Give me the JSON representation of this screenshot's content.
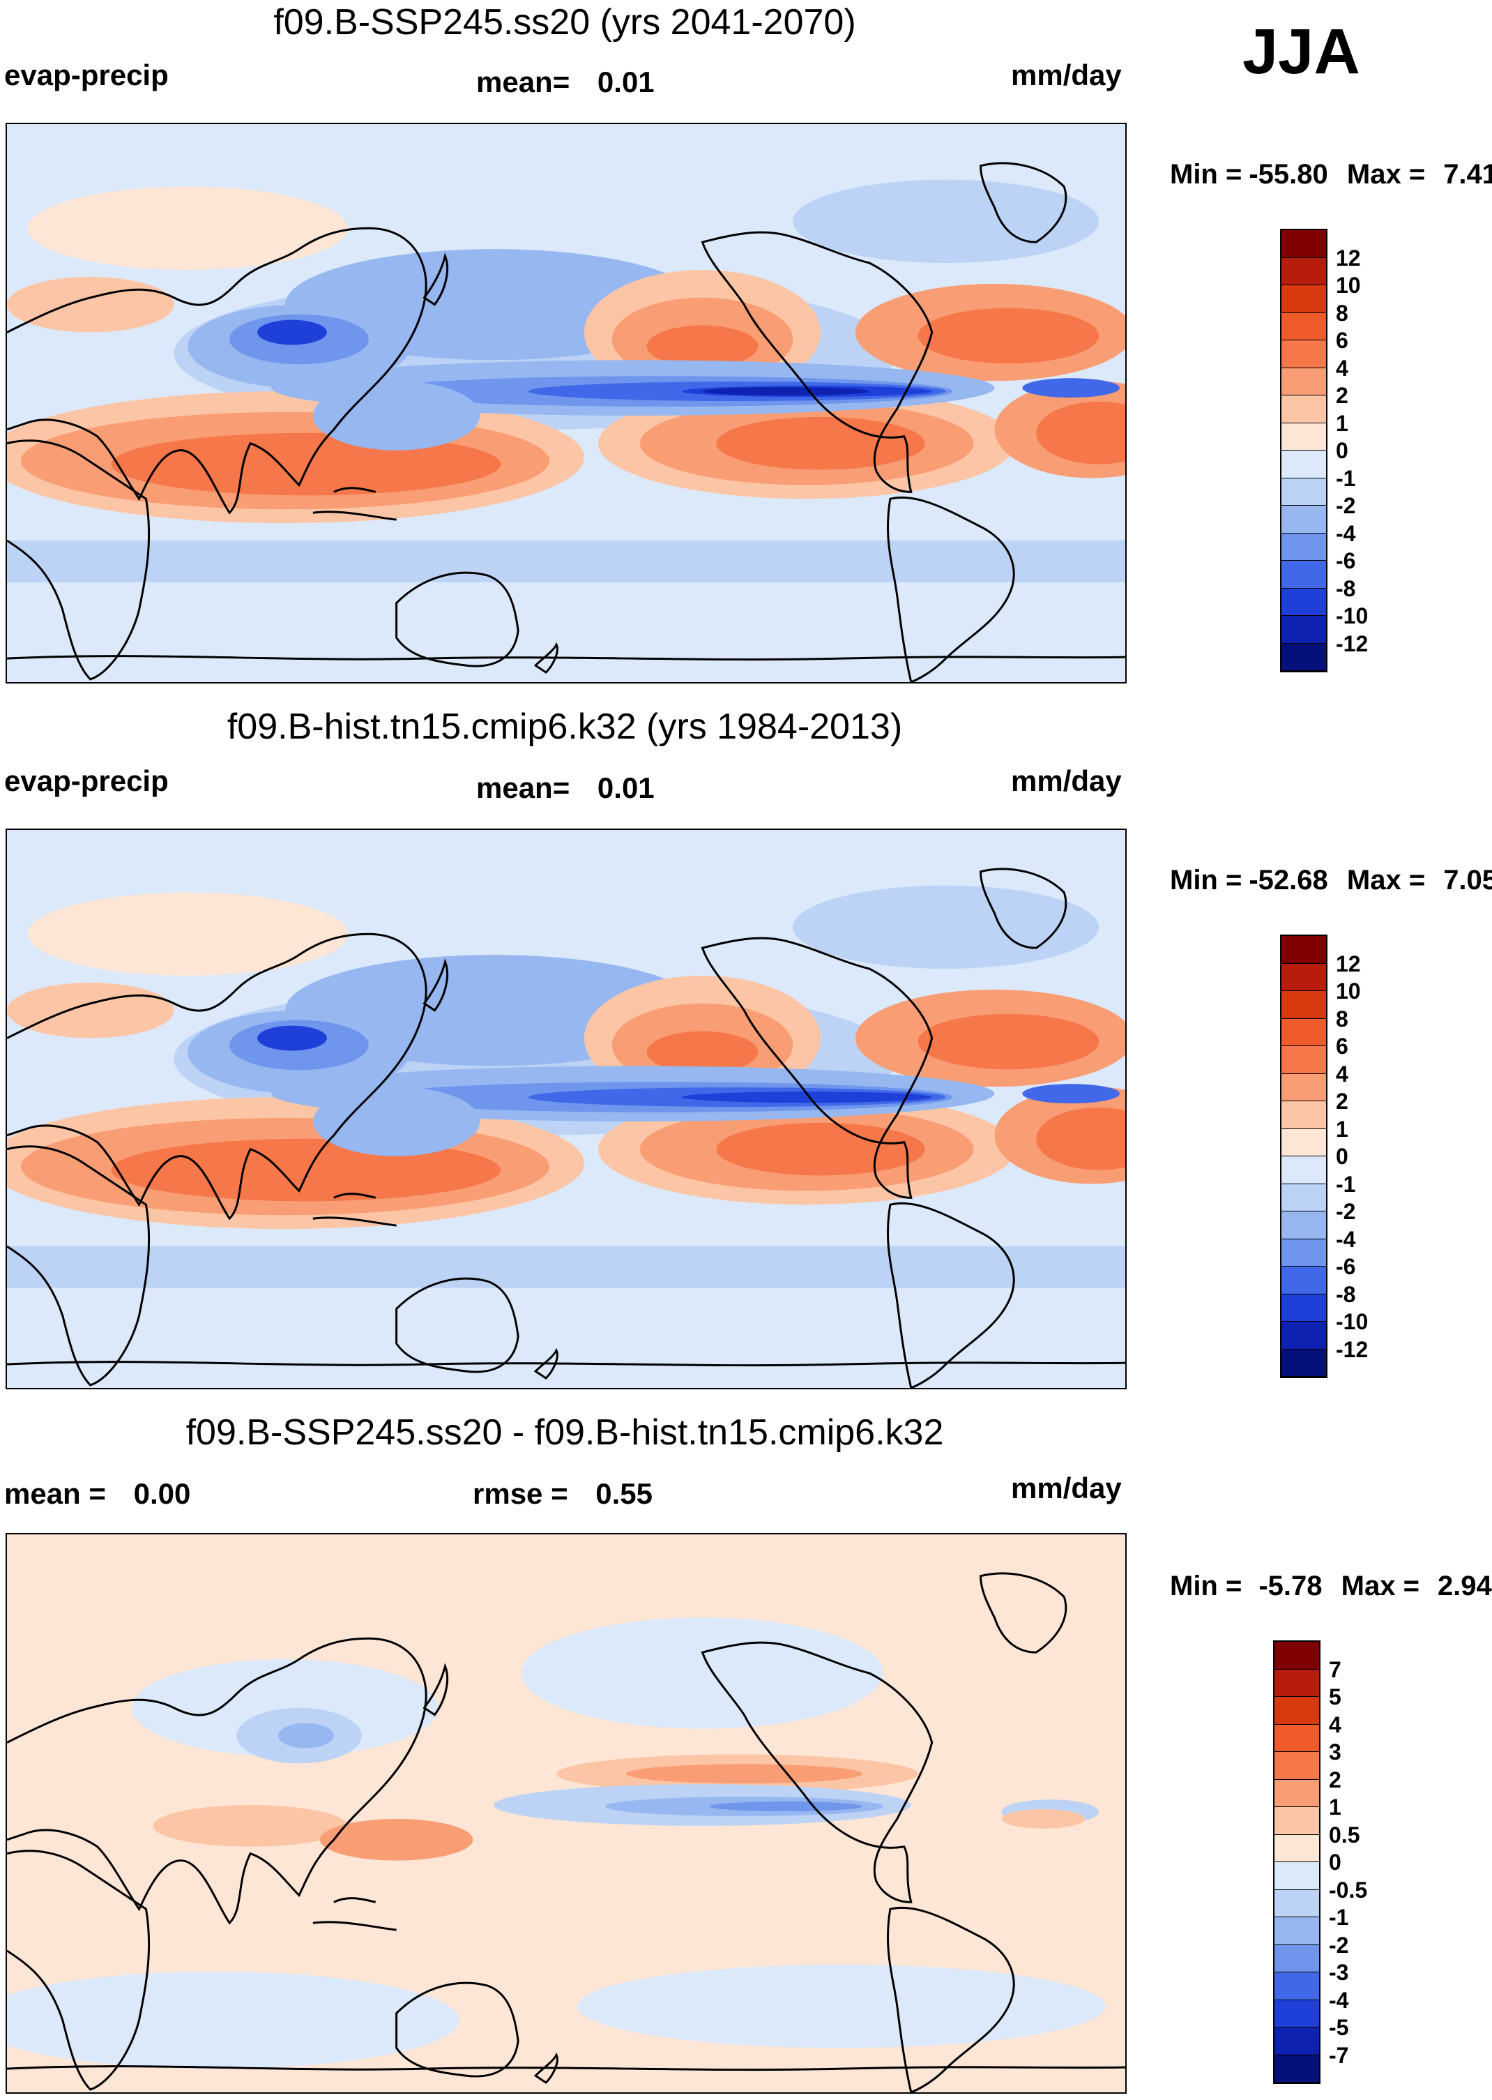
{
  "season": "JJA",
  "panels": [
    {
      "title": "f09.B-SSP245.ss20 (yrs 2041-2070)",
      "left_label": "evap-precip",
      "mid_label": "mean=",
      "mid_value": "0.01",
      "units": "mm/day",
      "min_label": "Min =",
      "min_value": "-55.80",
      "max_label": "Max =",
      "max_value": "7.41",
      "colorbar": {
        "labels": [
          "12",
          "10",
          "8",
          "6",
          "4",
          "2",
          "1",
          "0",
          "-1",
          "-2",
          "-4",
          "-6",
          "-8",
          "-10",
          "-12"
        ],
        "colors": [
          "#7f0000",
          "#b71c0c",
          "#d8390f",
          "#ef5b2a",
          "#f5774a",
          "#f99d74",
          "#fcc6a6",
          "#fde6d6",
          "#dbe9fb",
          "#bcd3f6",
          "#96b7f0",
          "#6f95ec",
          "#4068e8",
          "#1f3fd9",
          "#0d22b0",
          "#06107a"
        ]
      }
    },
    {
      "title": "f09.B-hist.tn15.cmip6.k32 (yrs 1984-2013)",
      "left_label": "evap-precip",
      "mid_label": "mean=",
      "mid_value": "0.01",
      "units": "mm/day",
      "min_label": "Min =",
      "min_value": "-52.68",
      "max_label": "Max =",
      "max_value": "7.05",
      "colorbar": {
        "labels": [
          "12",
          "10",
          "8",
          "6",
          "4",
          "2",
          "1",
          "0",
          "-1",
          "-2",
          "-4",
          "-6",
          "-8",
          "-10",
          "-12"
        ],
        "colors": [
          "#7f0000",
          "#b71c0c",
          "#d8390f",
          "#ef5b2a",
          "#f5774a",
          "#f99d74",
          "#fcc6a6",
          "#fde6d6",
          "#dbe9fb",
          "#bcd3f6",
          "#96b7f0",
          "#6f95ec",
          "#4068e8",
          "#1f3fd9",
          "#0d22b0",
          "#06107a"
        ]
      }
    },
    {
      "title": "f09.B-SSP245.ss20 - f09.B-hist.tn15.cmip6.k32",
      "left_label": "mean =",
      "left_value": "0.00",
      "mid_label": "rmse =",
      "mid_value": "0.55",
      "units": "mm/day",
      "min_label": "Min =",
      "min_value": "-5.78",
      "max_label": "Max =",
      "max_value": "2.94",
      "colorbar": {
        "labels": [
          "7",
          "5",
          "4",
          "3",
          "2",
          "1",
          "0.5",
          "0",
          "-0.5",
          "-1",
          "-2",
          "-3",
          "-4",
          "-5",
          "-7"
        ],
        "colors": [
          "#7f0000",
          "#b71c0c",
          "#d8390f",
          "#ef5b2a",
          "#f5774a",
          "#f99d74",
          "#fcc6a6",
          "#fde6d6",
          "#dbe9fb",
          "#bcd3f6",
          "#96b7f0",
          "#6f95ec",
          "#4068e8",
          "#1f3fd9",
          "#0d22b0",
          "#06107a"
        ]
      }
    }
  ]
}
